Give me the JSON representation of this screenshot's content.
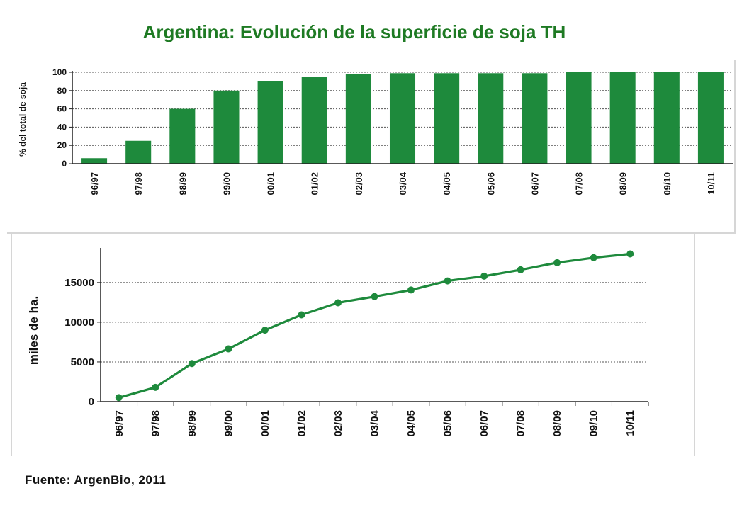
{
  "title": "Argentina: Evolución de la superficie de soja TH",
  "source": "Fuente: ArgenBio, 2011",
  "colors": {
    "bar": "#1e8a3c",
    "line": "#1e8a3c",
    "title": "#1e7a23",
    "grid": "#555555"
  },
  "chart_data": [
    {
      "type": "bar",
      "categories": [
        "96/97",
        "97/98",
        "98/99",
        "99/00",
        "00/01",
        "01/02",
        "02/03",
        "03/04",
        "04/05",
        "05/06",
        "06/07",
        "07/08",
        "08/09",
        "09/10",
        "10/11"
      ],
      "values": [
        6,
        25,
        60,
        80,
        90,
        95,
        98,
        99,
        99,
        99,
        99,
        100,
        100,
        100,
        100
      ],
      "ylabel": "% del total de soja",
      "yticks": [
        0,
        20,
        40,
        60,
        80,
        100
      ],
      "ylim": [
        0,
        100
      ],
      "grid": true
    },
    {
      "type": "line",
      "categories": [
        "96/97",
        "97/98",
        "98/99",
        "99/00",
        "00/01",
        "01/02",
        "02/03",
        "03/04",
        "04/05",
        "05/06",
        "06/07",
        "07/08",
        "08/09",
        "09/10",
        "10/11"
      ],
      "values": [
        500,
        1800,
        4800,
        6640,
        9000,
        10925,
        12446,
        13230,
        14058,
        15200,
        15800,
        16600,
        17500,
        18130,
        18600
      ],
      "ylabel": "miles de ha.",
      "yticks": [
        0,
        5000,
        10000,
        15000
      ],
      "ylim": [
        0,
        19000
      ],
      "grid": true
    }
  ]
}
